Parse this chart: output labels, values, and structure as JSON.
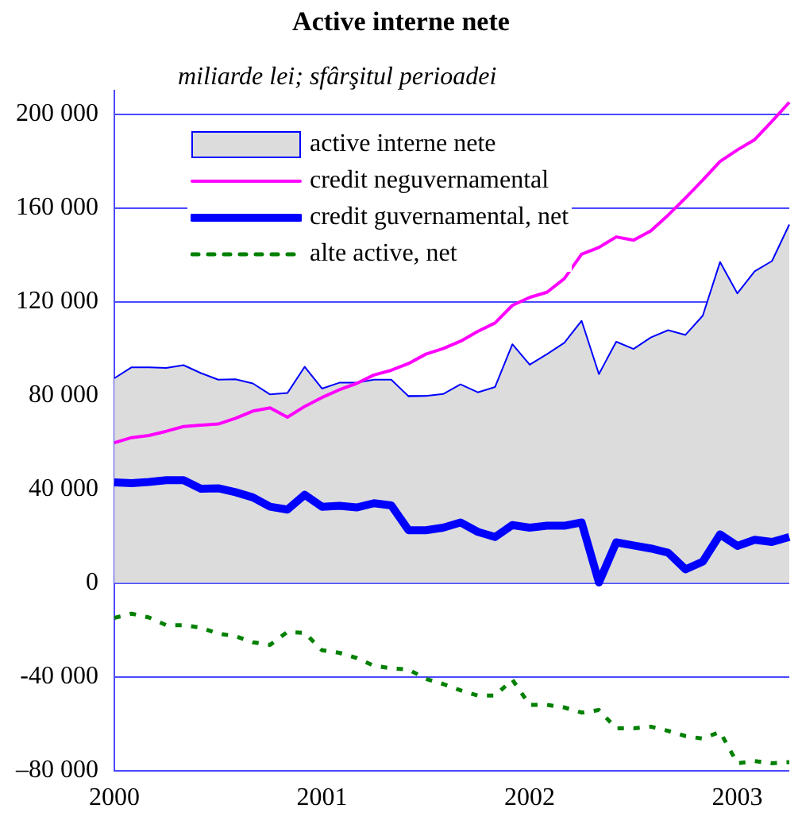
{
  "chart_data": {
    "type": "line",
    "title": "Active interne nete",
    "subtitle": "miliarde lei; sfârşitul perioadei",
    "categories": [
      "2000",
      null,
      null,
      null,
      null,
      null,
      null,
      null,
      null,
      null,
      null,
      null,
      "2001",
      null,
      null,
      null,
      null,
      null,
      null,
      null,
      null,
      null,
      null,
      null,
      "2002",
      null,
      null,
      null,
      null,
      null,
      null,
      null,
      null,
      null,
      null,
      null,
      "2003",
      null,
      null,
      null
    ],
    "series": [
      {
        "name": "active interne nete",
        "type": "area",
        "color": "#dcdcdc",
        "values": [
          87300,
          92000,
          92000,
          91700,
          92900,
          89500,
          86700,
          86900,
          85100,
          80400,
          81000,
          92200,
          82900,
          85400,
          85400,
          86700,
          86700,
          79600,
          79800,
          80600,
          84700,
          81300,
          83600,
          101800,
          93100,
          97600,
          102400,
          111800,
          89100,
          102900,
          99800,
          104700,
          107800,
          105800,
          114000,
          136900,
          123500,
          132900,
          137300,
          152900
        ]
      },
      {
        "name": "credit neguvernamental",
        "color": "#ff00ff",
        "values": [
          59800,
          62000,
          62900,
          64700,
          66700,
          67300,
          67800,
          70200,
          73300,
          74700,
          70700,
          75300,
          79100,
          82400,
          85100,
          88700,
          90700,
          93600,
          97600,
          100000,
          103100,
          107300,
          110900,
          118400,
          121800,
          124000,
          129800,
          140200,
          143100,
          147600,
          146200,
          150200,
          156900,
          164200,
          171800,
          179800,
          184700,
          189100,
          196900,
          205000
        ]
      },
      {
        "name": "credit guvernamental, net",
        "color": "#0000ff",
        "values": [
          42900,
          42600,
          43100,
          43800,
          43800,
          40200,
          40400,
          38700,
          36500,
          32500,
          31300,
          37600,
          32500,
          32900,
          32200,
          34000,
          33100,
          22500,
          22500,
          23600,
          25800,
          21800,
          19600,
          24700,
          23600,
          24400,
          24400,
          25800,
          200,
          17300,
          16000,
          14700,
          12900,
          5800,
          9100,
          20700,
          15800,
          18400,
          17500,
          19600
        ]
      },
      {
        "name": "alte active, net",
        "color": "#008000",
        "line_style": "dashed",
        "values": [
          -14900,
          -13100,
          -14700,
          -18000,
          -18000,
          -19100,
          -21600,
          -22700,
          -25300,
          -26400,
          -20900,
          -21300,
          -28700,
          -29800,
          -32000,
          -35300,
          -36400,
          -36900,
          -40900,
          -43100,
          -45800,
          -48000,
          -48000,
          -41300,
          -52000,
          -52000,
          -53100,
          -55300,
          -54200,
          -62000,
          -62000,
          -61300,
          -63100,
          -65300,
          -66400,
          -63500,
          -76900,
          -76000,
          -76900,
          -76400
        ]
      }
    ],
    "ylim": [
      -80000,
      210000
    ],
    "yticks": [
      {
        "value": -80000,
        "label": "–80 000"
      },
      {
        "value": -40000,
        "label": "-40 000"
      },
      {
        "value": 0,
        "label": "0"
      },
      {
        "value": 40000,
        "label": "40 000"
      },
      {
        "value": 80000,
        "label": "80 000"
      },
      {
        "value": 120000,
        "label": "120 000"
      },
      {
        "value": 160000,
        "label": "160 000"
      },
      {
        "value": 200000,
        "label": "200 000"
      }
    ],
    "grid": "y",
    "legend": "top left",
    "marker": "none"
  }
}
